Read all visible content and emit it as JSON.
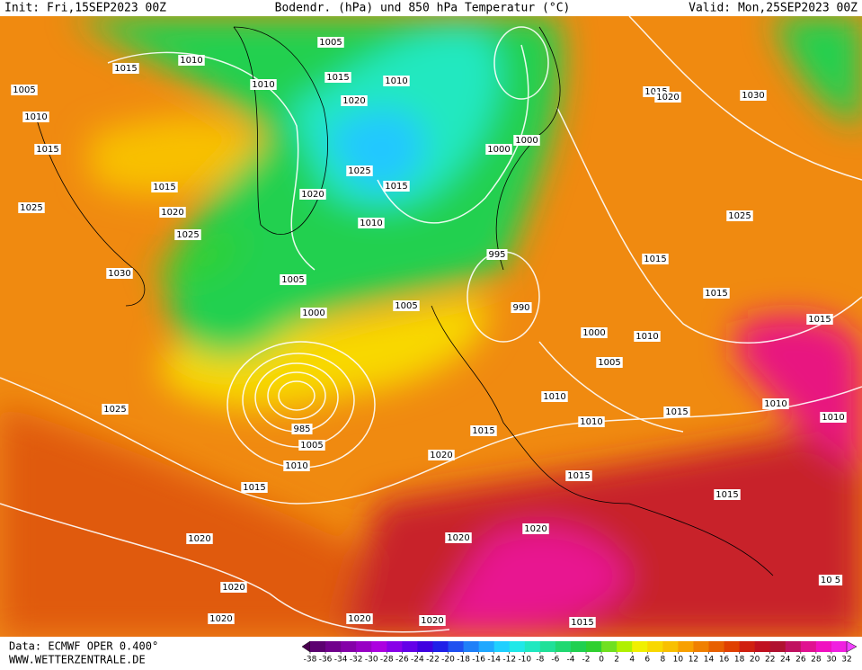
{
  "header": {
    "init": "Init: Fri,15SEP2023 00Z",
    "title": "Bodendr. (hPa) und 850 hPa Temperatur (°C)",
    "valid": "Valid: Mon,25SEP2023 00Z"
  },
  "footer": {
    "data": "Data: ECMWF OPER 0.400°",
    "site": "WWW.WETTERZENTRALE.DE"
  },
  "isobar_labels": [
    "1005",
    "1010",
    "1015",
    "1005",
    "1010",
    "1015",
    "1010",
    "1015",
    "1010",
    "1020",
    "1025",
    "1015",
    "1020",
    "1010",
    "1000",
    "1000",
    "1015",
    "1020",
    "1030",
    "1015",
    "1020",
    "1025",
    "1025",
    "1025",
    "995",
    "1015",
    "1030",
    "1005",
    "1000",
    "1005",
    "990",
    "1015",
    "1015",
    "1000",
    "1010",
    "1005",
    "1010",
    "1010",
    "1015",
    "1010",
    "1025",
    "1010",
    "985",
    "1005",
    "1015",
    "1020",
    "1010",
    "1015",
    "1015",
    "1015",
    "1020",
    "1020",
    "1020",
    "1020",
    "1020",
    "1020",
    "1020",
    "1015",
    "10 5"
  ],
  "colorbar": {
    "ticks": [
      -38,
      -36,
      -34,
      -32,
      -30,
      -28,
      -26,
      -24,
      -22,
      -20,
      -18,
      -16,
      -14,
      -12,
      -10,
      -8,
      -6,
      -4,
      -2,
      0,
      2,
      4,
      6,
      8,
      10,
      12,
      14,
      16,
      18,
      20,
      22,
      24,
      26,
      28,
      30,
      32
    ],
    "colors": [
      "#4a0050",
      "#5c0070",
      "#70008c",
      "#8400a8",
      "#9800c4",
      "#ac00e0",
      "#8800e8",
      "#6400e8",
      "#4000e0",
      "#2020e8",
      "#2050f0",
      "#2080f8",
      "#20a8ff",
      "#20d0ff",
      "#20e8e8",
      "#20e8c0",
      "#20e098",
      "#20d870",
      "#20d050",
      "#30d030",
      "#70e020",
      "#b0f000",
      "#f0f000",
      "#f8d800",
      "#f8c000",
      "#f8a000",
      "#f08000",
      "#e86000",
      "#e04000",
      "#d02010",
      "#c01020",
      "#b01030",
      "#c01060",
      "#e01090",
      "#f010c0",
      "#f020e0",
      "#f040ff"
    ]
  }
}
